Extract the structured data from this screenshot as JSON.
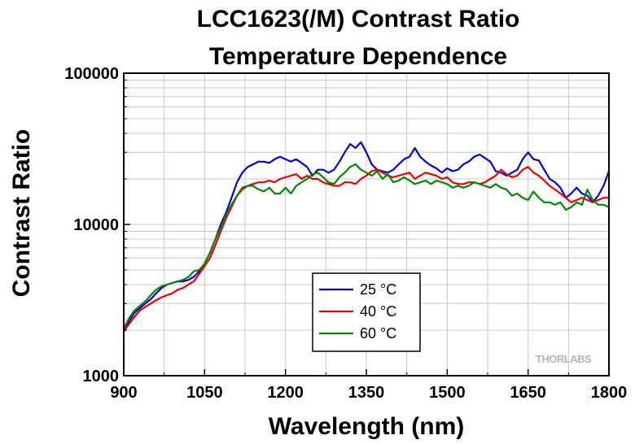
{
  "chart_data": {
    "type": "line",
    "title": "LCC1623(/M) Contrast Ratio",
    "subtitle": "Temperature Dependence",
    "xlabel": "Wavelength (nm)",
    "ylabel": "Contrast Ratio",
    "xlim": [
      900,
      1800
    ],
    "ylim": [
      1000,
      100000
    ],
    "y_scale": "log",
    "x_ticks": [
      900,
      1050,
      1200,
      1350,
      1500,
      1650,
      1800
    ],
    "x_tick_labels": [
      "900",
      "1050",
      "1200",
      "1350",
      "1500",
      "1650",
      "1800"
    ],
    "y_ticks": [
      1000,
      10000,
      100000
    ],
    "y_tick_labels": [
      "1000",
      "10000",
      "100000"
    ],
    "grid": true,
    "legend_position": "bottom-center",
    "watermark": "THORLABS",
    "series": [
      {
        "name": "25 °C",
        "color": "#0000dd",
        "x": [
          900,
          910,
          920,
          930,
          940,
          950,
          960,
          970,
          980,
          990,
          1000,
          1010,
          1020,
          1030,
          1040,
          1050,
          1060,
          1070,
          1080,
          1090,
          1100,
          1110,
          1120,
          1130,
          1140,
          1150,
          1160,
          1170,
          1180,
          1190,
          1200,
          1210,
          1220,
          1230,
          1240,
          1250,
          1260,
          1270,
          1280,
          1290,
          1300,
          1310,
          1320,
          1330,
          1340,
          1350,
          1360,
          1370,
          1380,
          1390,
          1400,
          1410,
          1420,
          1430,
          1440,
          1450,
          1460,
          1470,
          1480,
          1490,
          1500,
          1510,
          1520,
          1530,
          1540,
          1550,
          1560,
          1570,
          1580,
          1590,
          1600,
          1610,
          1620,
          1630,
          1640,
          1650,
          1660,
          1670,
          1680,
          1690,
          1700,
          1710,
          1720,
          1730,
          1740,
          1750,
          1760,
          1770,
          1780,
          1790,
          1800
        ],
        "y": [
          2000,
          2300,
          2600,
          2800,
          3000,
          3200,
          3500,
          3800,
          4000,
          4100,
          4200,
          4200,
          4300,
          4500,
          4900,
          5500,
          6500,
          8000,
          10000,
          12000,
          15000,
          19000,
          22000,
          24000,
          25000,
          26000,
          26000,
          25500,
          27000,
          28000,
          27000,
          26000,
          27000,
          25500,
          24000,
          21000,
          23000,
          23000,
          22000,
          23000,
          26000,
          30000,
          34000,
          32000,
          35000,
          30000,
          25000,
          23000,
          22500,
          22000,
          23000,
          25000,
          27000,
          28000,
          32000,
          28000,
          26000,
          24500,
          23500,
          22000,
          23500,
          22500,
          23000,
          25000,
          26000,
          28000,
          29000,
          27500,
          26000,
          22500,
          22000,
          21000,
          22000,
          23000,
          27000,
          30000,
          27000,
          26500,
          23000,
          20000,
          19000,
          17500,
          15000,
          16000,
          17500,
          16000,
          15500,
          14000,
          15500,
          18000,
          22500
        ]
      },
      {
        "name": "40 °C",
        "color": "#ee0000",
        "x": [
          900,
          910,
          920,
          930,
          940,
          950,
          960,
          970,
          980,
          990,
          1000,
          1010,
          1020,
          1030,
          1040,
          1050,
          1060,
          1070,
          1080,
          1090,
          1100,
          1110,
          1120,
          1130,
          1140,
          1150,
          1160,
          1170,
          1180,
          1190,
          1200,
          1210,
          1220,
          1230,
          1240,
          1250,
          1260,
          1270,
          1280,
          1290,
          1300,
          1310,
          1320,
          1330,
          1340,
          1350,
          1360,
          1370,
          1380,
          1390,
          1400,
          1410,
          1420,
          1430,
          1440,
          1450,
          1460,
          1470,
          1480,
          1490,
          1500,
          1510,
          1520,
          1530,
          1540,
          1550,
          1560,
          1570,
          1580,
          1590,
          1600,
          1610,
          1620,
          1630,
          1640,
          1650,
          1660,
          1670,
          1680,
          1690,
          1700,
          1710,
          1720,
          1730,
          1740,
          1750,
          1760,
          1770,
          1780,
          1790,
          1800
        ],
        "y": [
          1950,
          2200,
          2450,
          2700,
          2850,
          3000,
          3150,
          3300,
          3400,
          3500,
          3700,
          3800,
          4000,
          4200,
          4700,
          5300,
          6000,
          7300,
          9000,
          11000,
          13000,
          15500,
          17500,
          18000,
          18500,
          19000,
          19000,
          19500,
          19000,
          20000,
          20500,
          21000,
          21500,
          20000,
          21000,
          20000,
          20000,
          19000,
          18500,
          18000,
          18000,
          19000,
          19000,
          18500,
          20000,
          21000,
          22500,
          23000,
          22000,
          21000,
          20500,
          21000,
          21500,
          22000,
          20000,
          21000,
          22000,
          21500,
          21000,
          20000,
          20500,
          19000,
          18500,
          18500,
          19000,
          19000,
          18500,
          19000,
          20000,
          21000,
          23000,
          21500,
          20500,
          21000,
          23000,
          24000,
          22000,
          21000,
          19500,
          18000,
          17000,
          16000,
          15000,
          14000,
          14500,
          15000,
          14500,
          14000,
          14500,
          15000,
          15000
        ]
      },
      {
        "name": "60 °C",
        "color": "#008800",
        "x": [
          900,
          910,
          920,
          930,
          940,
          950,
          960,
          970,
          980,
          990,
          1000,
          1010,
          1020,
          1030,
          1040,
          1050,
          1060,
          1070,
          1080,
          1090,
          1100,
          1110,
          1120,
          1130,
          1140,
          1150,
          1160,
          1170,
          1180,
          1190,
          1200,
          1210,
          1220,
          1230,
          1240,
          1250,
          1260,
          1270,
          1280,
          1290,
          1300,
          1310,
          1320,
          1330,
          1340,
          1350,
          1360,
          1370,
          1380,
          1390,
          1400,
          1410,
          1420,
          1430,
          1440,
          1450,
          1460,
          1470,
          1480,
          1490,
          1500,
          1510,
          1520,
          1530,
          1540,
          1550,
          1560,
          1570,
          1580,
          1590,
          1600,
          1610,
          1620,
          1630,
          1640,
          1650,
          1660,
          1670,
          1680,
          1690,
          1700,
          1710,
          1720,
          1730,
          1740,
          1750,
          1760,
          1770,
          1780,
          1790,
          1800
        ],
        "y": [
          2050,
          2400,
          2700,
          2900,
          3100,
          3400,
          3700,
          3900,
          4000,
          4100,
          4200,
          4300,
          4500,
          4900,
          5000,
          5500,
          6500,
          8000,
          9500,
          11500,
          13500,
          15500,
          17000,
          18000,
          18000,
          17000,
          16500,
          17500,
          16000,
          16000,
          17500,
          16000,
          18000,
          19000,
          20000,
          21500,
          22000,
          20500,
          19000,
          18500,
          20500,
          22000,
          24000,
          25000,
          23000,
          22000,
          21000,
          22500,
          20000,
          21500,
          19000,
          19500,
          20500,
          19500,
          18500,
          19000,
          19500,
          18500,
          19500,
          19000,
          18500,
          17500,
          18000,
          17500,
          18000,
          19000,
          18500,
          18000,
          17500,
          18500,
          17500,
          17000,
          15500,
          16000,
          15000,
          14500,
          16500,
          15000,
          14000,
          14000,
          13500,
          14000,
          12500,
          13000,
          14000,
          13500,
          17000,
          14500,
          13500,
          13500,
          13000
        ]
      }
    ]
  }
}
